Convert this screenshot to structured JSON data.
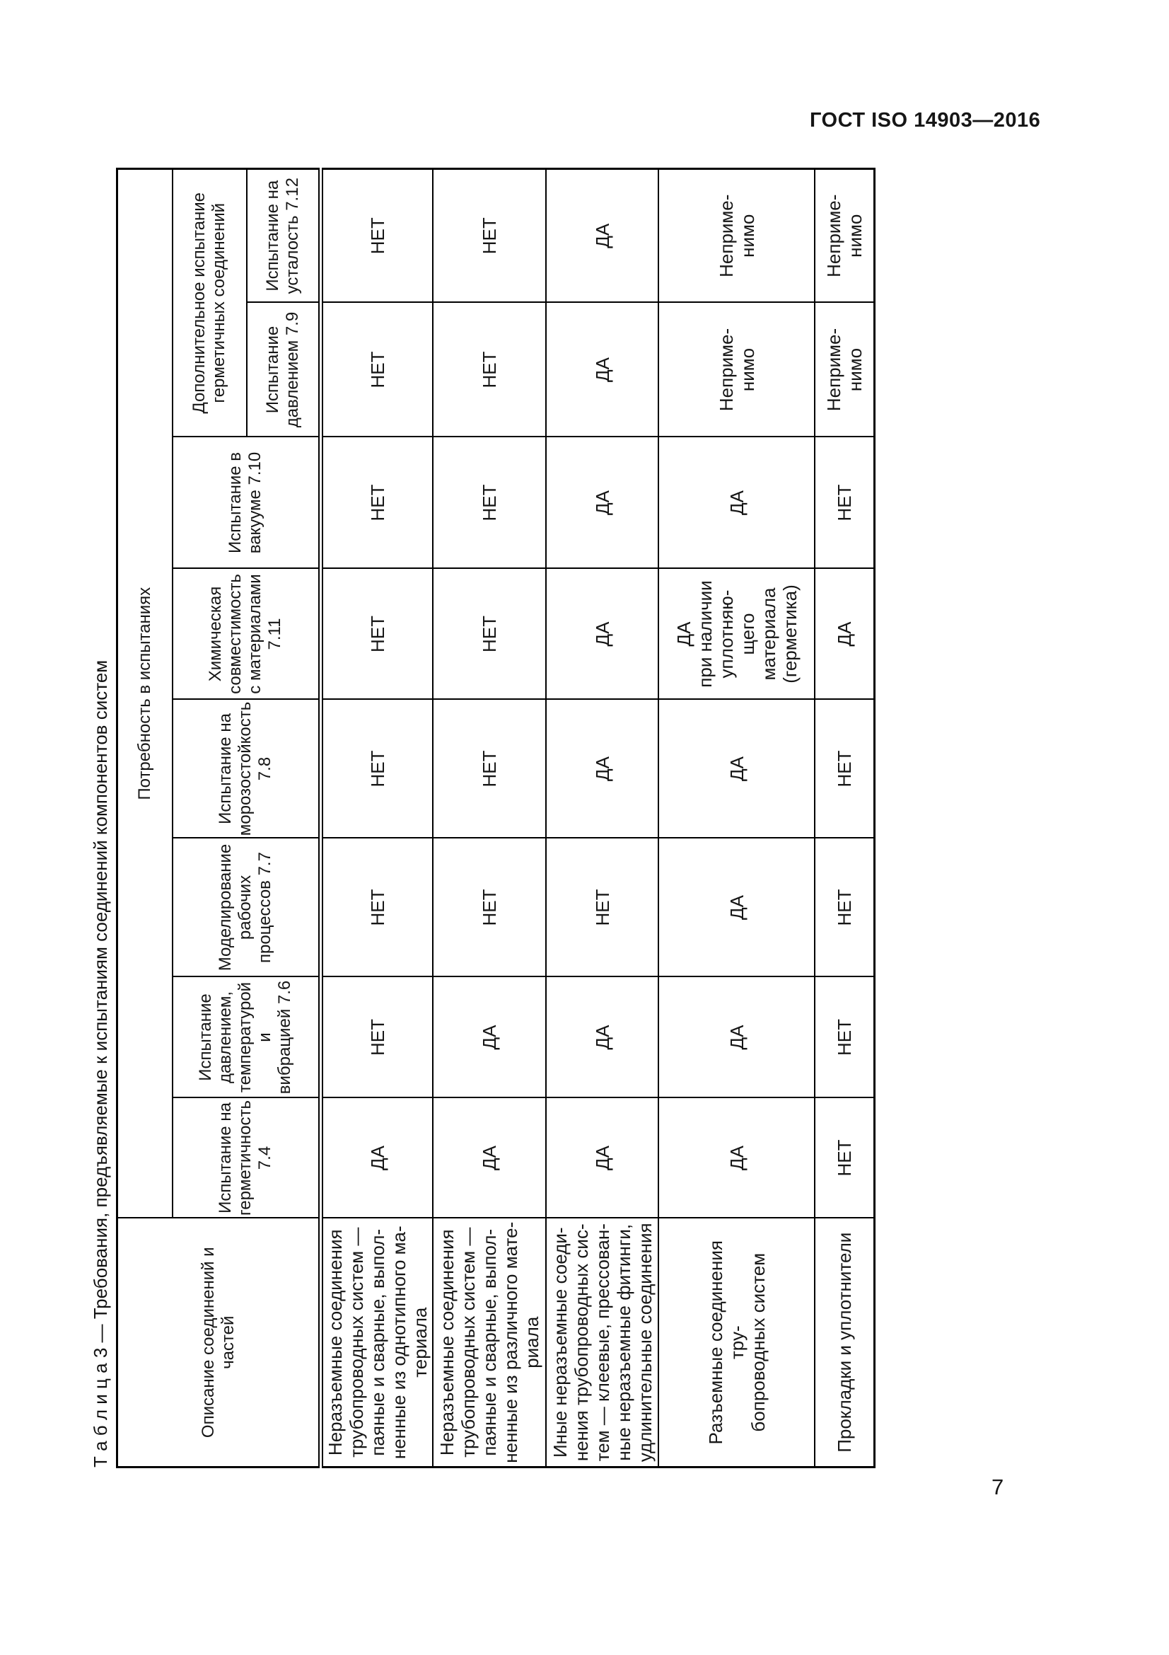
{
  "page": {
    "header": "ГОСТ ISO 14903—2016",
    "page_number": "7"
  },
  "table": {
    "title": "Т а б л и ц а 3 — Требования, предъявляемые к испытаниям соединений компонентов систем",
    "desc_header": "Описание соединений и частей",
    "col_group_label": "Потребность в испытаниях",
    "additional_group_label": "Дополнительное испытание\nгерметичных соединений",
    "columns": [
      {
        "id": "7.4",
        "label": "Испытание на\nгерметичность\n7.4"
      },
      {
        "id": "7.6",
        "label": "Испытание\nдавлением,\nтемпературой и\nвибрацией 7.6"
      },
      {
        "id": "7.7",
        "label": "Моделирование\nрабочих\nпроцессов 7.7"
      },
      {
        "id": "7.8",
        "label": "Испытание на\nморозостойкость\n7.8"
      },
      {
        "id": "7.11",
        "label": "Химическая\nсовместимость\nс материалами\n7.11"
      },
      {
        "id": "7.10",
        "label": "Испытание в\nвакууме 7.10"
      },
      {
        "id": "7.9",
        "label": "Испытание\nдавлением 7.9"
      },
      {
        "id": "7.12",
        "label": "Испытание на\nусталость 7.12"
      }
    ],
    "rows": [
      {
        "description": "Неразъемные соединения\nтрубопроводных систем —\nпаяные и сварные, выпол-\nненные из однотипного ма-\nтериала",
        "values": [
          "ДА",
          "НЕТ",
          "НЕТ",
          "НЕТ",
          "НЕТ",
          "НЕТ",
          "НЕТ",
          "НЕТ"
        ]
      },
      {
        "description": "Неразъемные соединения\nтрубопроводных систем —\nпаяные и сварные, выпол-\nненные из различного мате-\nриала",
        "values": [
          "ДА",
          "ДА",
          "НЕТ",
          "НЕТ",
          "НЕТ",
          "НЕТ",
          "НЕТ",
          "НЕТ"
        ]
      },
      {
        "description": "Иные неразъемные соеди-\nнения трубопроводных сис-\nтем — клеевые, прессован-\nные неразъемные фитинги,\nудлинительные соединения",
        "values": [
          "ДА",
          "ДА",
          "НЕТ",
          "ДА",
          "ДА",
          "ДА",
          "ДА",
          "ДА"
        ]
      },
      {
        "description": "Разъемные соединения тру-\nбопроводных систем",
        "values": [
          "ДА",
          "ДА",
          "ДА",
          "ДА",
          "ДА\nпри наличии\nуплотняю-\nщего\nматериала\n(герметика)",
          "ДА",
          "Неприме-\nнимо",
          "Неприме-\nнимо"
        ]
      },
      {
        "description": "Прокладки и уплотнители",
        "values": [
          "НЕТ",
          "НЕТ",
          "НЕТ",
          "НЕТ",
          "ДА",
          "НЕТ",
          "Неприме-\nнимо",
          "Неприме-\nнимо"
        ]
      }
    ]
  }
}
